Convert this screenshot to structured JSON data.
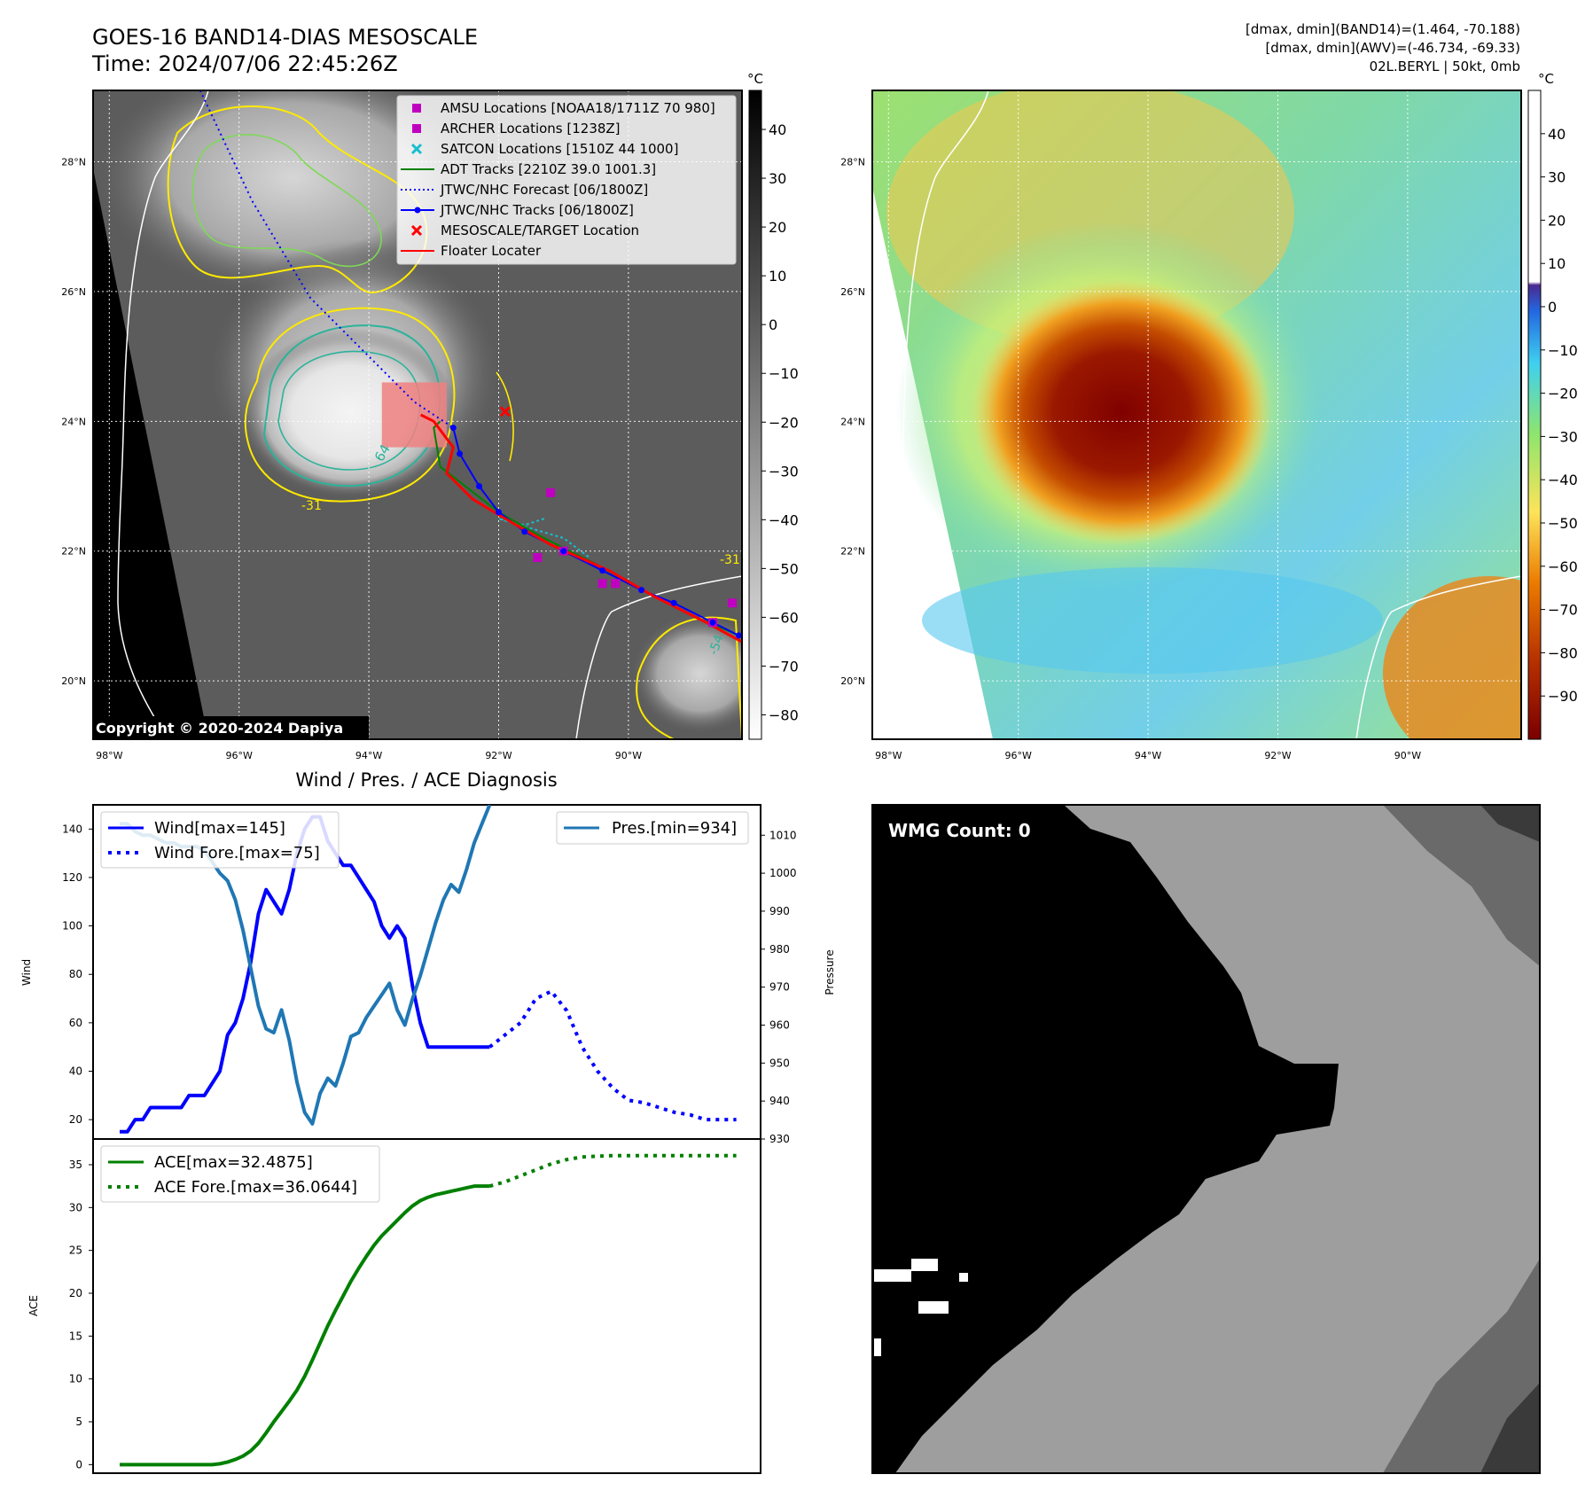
{
  "header": {
    "title_line1": "GOES-16 BAND14-DIAS MESOSCALE",
    "title_line2": "Time: 2024/07/06 22:45:26Z",
    "stats_line1": "[dmax, dmin](BAND14)=(1.464, -70.188)",
    "stats_line2": "[dmax, dmin](AWV)=(-46.734, -69.33)",
    "stats_line3": "02L.BERYL | 50kt, 0mb"
  },
  "map": {
    "lat_labels": [
      "28°N",
      "26°N",
      "24°N",
      "22°N",
      "20°N"
    ],
    "lat_values": [
      28,
      26,
      24,
      22,
      20
    ],
    "lon_labels": [
      "98°W",
      "96°W",
      "94°W",
      "92°W",
      "90°W"
    ],
    "lon_values": [
      -98,
      -96,
      -94,
      -92,
      -90
    ],
    "lon_range": [
      -98.25,
      -88.25
    ],
    "lat_range": [
      19.1,
      29.1
    ],
    "copyright": "Copyright © 2020-2024 Dapiya",
    "contour_labels": [
      "-31",
      "64",
      "-31",
      "-54"
    ],
    "colorbar_unit": "°C",
    "colorbar_ticks": [
      "40",
      "30",
      "20",
      "10",
      "0",
      "−10",
      "−20",
      "−30",
      "−40",
      "−50",
      "−60",
      "−70",
      "−80"
    ],
    "colorbar_values": [
      40,
      30,
      20,
      10,
      0,
      -10,
      -20,
      -30,
      -40,
      -50,
      -60,
      -70,
      -80
    ],
    "colorbar_range": [
      -85,
      48
    ]
  },
  "legend": {
    "items": [
      {
        "label": "AMSU Locations [NOAA18/1711Z 70 980]",
        "marker": "square",
        "color": "#c000c0"
      },
      {
        "label": "ARCHER Locations [1238Z]",
        "marker": "square",
        "color": "#c000c0"
      },
      {
        "label": "SATCON Locations [1510Z 44 1000]",
        "marker": "x",
        "color": "#17becf"
      },
      {
        "label": "ADT Tracks [2210Z 39.0 1001.3]",
        "marker": "line",
        "color": "#008000"
      },
      {
        "label": "JTWC/NHC Forecast [06/1800Z]",
        "marker": "dotted",
        "color": "#0000ff"
      },
      {
        "label": "JTWC/NHC Tracks [06/1800Z]",
        "marker": "line-dot",
        "color": "#0000ff"
      },
      {
        "label": "MESOSCALE/TARGET Location",
        "marker": "x",
        "color": "#ff0000"
      },
      {
        "label": "Floater Locater",
        "marker": "line",
        "color": "#ff0000"
      }
    ]
  },
  "tracks": {
    "jtwc_forecast": [
      [
        -96.6,
        29.1
      ],
      [
        -95.8,
        27.4
      ],
      [
        -94.9,
        25.9
      ],
      [
        -94.0,
        25.0
      ],
      [
        -93.3,
        24.3
      ],
      [
        -92.7,
        23.9
      ]
    ],
    "jtwc_track": [
      [
        -88.3,
        20.7
      ],
      [
        -88.7,
        20.9
      ],
      [
        -89.3,
        21.2
      ],
      [
        -89.8,
        21.4
      ],
      [
        -90.4,
        21.7
      ],
      [
        -91.0,
        22.0
      ],
      [
        -91.6,
        22.3
      ],
      [
        -92.0,
        22.6
      ],
      [
        -92.3,
        23.0
      ],
      [
        -92.6,
        23.5
      ],
      [
        -92.7,
        23.9
      ]
    ],
    "adt_track": [
      [
        -88.3,
        20.7
      ],
      [
        -89.0,
        21.0
      ],
      [
        -89.8,
        21.4
      ],
      [
        -90.5,
        21.8
      ],
      [
        -91.3,
        22.2
      ],
      [
        -92.0,
        22.6
      ],
      [
        -92.9,
        23.3
      ],
      [
        -93.0,
        23.9
      ],
      [
        -92.9,
        24.0
      ]
    ],
    "floater": [
      [
        -88.25,
        20.6
      ],
      [
        -88.8,
        20.9
      ],
      [
        -89.6,
        21.3
      ],
      [
        -90.3,
        21.7
      ],
      [
        -91.2,
        22.1
      ],
      [
        -91.9,
        22.5
      ],
      [
        -92.4,
        22.8
      ],
      [
        -92.8,
        23.2
      ],
      [
        -92.7,
        23.6
      ],
      [
        -93.0,
        24.0
      ],
      [
        -93.2,
        24.1
      ]
    ],
    "satcon_track": [
      [
        -91.3,
        22.5
      ],
      [
        -91.6,
        22.4
      ],
      [
        -92.0,
        22.5
      ],
      [
        -91.0,
        22.2
      ],
      [
        -90.6,
        21.9
      ]
    ],
    "amsu_points": [
      [
        -91.2,
        22.9
      ],
      [
        -91.4,
        21.9
      ],
      [
        -91.0,
        22.0
      ],
      [
        -90.4,
        21.5
      ],
      [
        -90.2,
        21.5
      ],
      [
        -88.4,
        21.2
      ],
      [
        -88.7,
        20.9
      ]
    ],
    "target": [
      -91.9,
      24.15
    ],
    "target_box": {
      "lon": [
        -93.8,
        -92.8
      ],
      "lat": [
        23.6,
        24.6
      ]
    }
  },
  "awv_colorbar": {
    "unit": "°C",
    "ticks": [
      "40",
      "30",
      "20",
      "10",
      "0",
      "−10",
      "−20",
      "−30",
      "−40",
      "−50",
      "−60",
      "−70",
      "−80",
      "−90"
    ],
    "values": [
      40,
      30,
      20,
      10,
      0,
      -10,
      -20,
      -30,
      -40,
      -50,
      -60,
      -70,
      -80,
      -90
    ],
    "range": [
      -100,
      50
    ]
  },
  "wmg": {
    "label": "WMG Count: 0"
  },
  "chart_data": [
    {
      "type": "line",
      "title": "Wind / Pres. / ACE Diagnosis",
      "ylabel": "Wind",
      "ylabel2": "Pressure",
      "ylim": [
        12,
        150
      ],
      "ylim2": [
        930,
        1018
      ],
      "yticks": [
        20,
        40,
        60,
        80,
        100,
        120,
        140
      ],
      "yticks2": [
        930,
        940,
        950,
        960,
        970,
        980,
        990,
        1000,
        1010
      ],
      "series": [
        {
          "name": "Wind[max=145]",
          "style": "solid",
          "color": "#0000ff",
          "x": [
            0,
            1,
            2,
            3,
            4,
            5,
            6,
            7,
            8,
            9,
            10,
            11,
            12,
            13,
            14,
            15,
            16,
            17,
            18,
            19,
            20,
            21,
            22,
            23,
            24,
            25,
            26,
            27,
            28,
            29,
            30,
            31,
            32,
            33,
            34,
            35,
            36,
            37,
            38,
            39,
            40,
            41,
            42,
            43,
            44,
            45,
            46,
            47,
            48
          ],
          "values": [
            15,
            15,
            20,
            20,
            25,
            25,
            25,
            25,
            25,
            30,
            30,
            30,
            35,
            40,
            55,
            60,
            70,
            85,
            105,
            115,
            110,
            105,
            115,
            130,
            140,
            145,
            145,
            135,
            130,
            125,
            125,
            120,
            115,
            110,
            100,
            95,
            100,
            95,
            75,
            60,
            50,
            50,
            50,
            50,
            50,
            50,
            50,
            50,
            50
          ]
        },
        {
          "name": "Wind Fore.[max=75]",
          "style": "dotted",
          "color": "#0000ff",
          "x": [
            48,
            50,
            52,
            54,
            56,
            58,
            60,
            62,
            64,
            66,
            68,
            70,
            72,
            74,
            76,
            78,
            80
          ],
          "values": [
            50,
            55,
            60,
            70,
            73,
            65,
            50,
            40,
            33,
            28,
            27,
            25,
            23,
            22,
            20,
            20,
            20
          ]
        },
        {
          "name": "Pres.[min=934]",
          "style": "solid",
          "color": "#1f77b4",
          "axis": "right",
          "x": [
            0,
            1,
            2,
            3,
            4,
            5,
            6,
            7,
            8,
            9,
            10,
            11,
            12,
            13,
            14,
            15,
            16,
            17,
            18,
            19,
            20,
            21,
            22,
            23,
            24,
            25,
            26,
            27,
            28,
            29,
            30,
            31,
            32,
            33,
            34,
            35,
            36,
            37,
            38,
            39,
            40,
            41,
            42,
            43,
            44,
            45,
            46,
            47,
            48
          ],
          "values": [
            1013,
            1013,
            1011,
            1010,
            1010,
            1009,
            1008,
            1008,
            1007,
            1007,
            1007,
            1006,
            1003,
            1000,
            998,
            993,
            985,
            975,
            965,
            959,
            958,
            964,
            956,
            945,
            937,
            934,
            942,
            946,
            944,
            950,
            957,
            958,
            962,
            965,
            968,
            971,
            964,
            960,
            967,
            973,
            980,
            987,
            993,
            997,
            995,
            1001,
            1008,
            1013,
            1018
          ]
        }
      ]
    },
    {
      "type": "line",
      "ylabel": "ACE",
      "ylim": [
        -1,
        38
      ],
      "yticks": [
        0,
        5,
        10,
        15,
        20,
        25,
        30,
        35
      ],
      "series": [
        {
          "name": "ACE[max=32.4875]",
          "style": "solid",
          "color": "#008000",
          "x": [
            0,
            1,
            2,
            3,
            4,
            5,
            6,
            7,
            8,
            9,
            10,
            11,
            12,
            13,
            14,
            15,
            16,
            17,
            18,
            19,
            20,
            21,
            22,
            23,
            24,
            25,
            26,
            27,
            28,
            29,
            30,
            31,
            32,
            33,
            34,
            35,
            36,
            37,
            38,
            39,
            40,
            41,
            42,
            43,
            44,
            45,
            46,
            47,
            48
          ],
          "values": [
            0,
            0,
            0,
            0,
            0,
            0,
            0,
            0,
            0,
            0,
            0,
            0,
            0,
            0.1,
            0.3,
            0.6,
            1.0,
            1.6,
            2.5,
            3.7,
            5,
            6.2,
            7.4,
            8.7,
            10.3,
            12.2,
            14.2,
            16.2,
            18,
            19.7,
            21.4,
            22.9,
            24.3,
            25.6,
            26.7,
            27.6,
            28.5,
            29.4,
            30.2,
            30.8,
            31.2,
            31.5,
            31.7,
            31.9,
            32.1,
            32.3,
            32.5,
            32.5,
            32.5
          ]
        },
        {
          "name": "ACE Fore.[max=36.0644]",
          "style": "dotted",
          "color": "#008000",
          "x": [
            48,
            50,
            52,
            54,
            56,
            58,
            60,
            62,
            64,
            66,
            68,
            70,
            72,
            74,
            76,
            78,
            80
          ],
          "values": [
            32.5,
            33.0,
            33.7,
            34.4,
            35.1,
            35.6,
            35.9,
            36.0,
            36.06,
            36.06,
            36.06,
            36.06,
            36.06,
            36.06,
            36.06,
            36.06,
            36.06
          ]
        }
      ]
    }
  ]
}
